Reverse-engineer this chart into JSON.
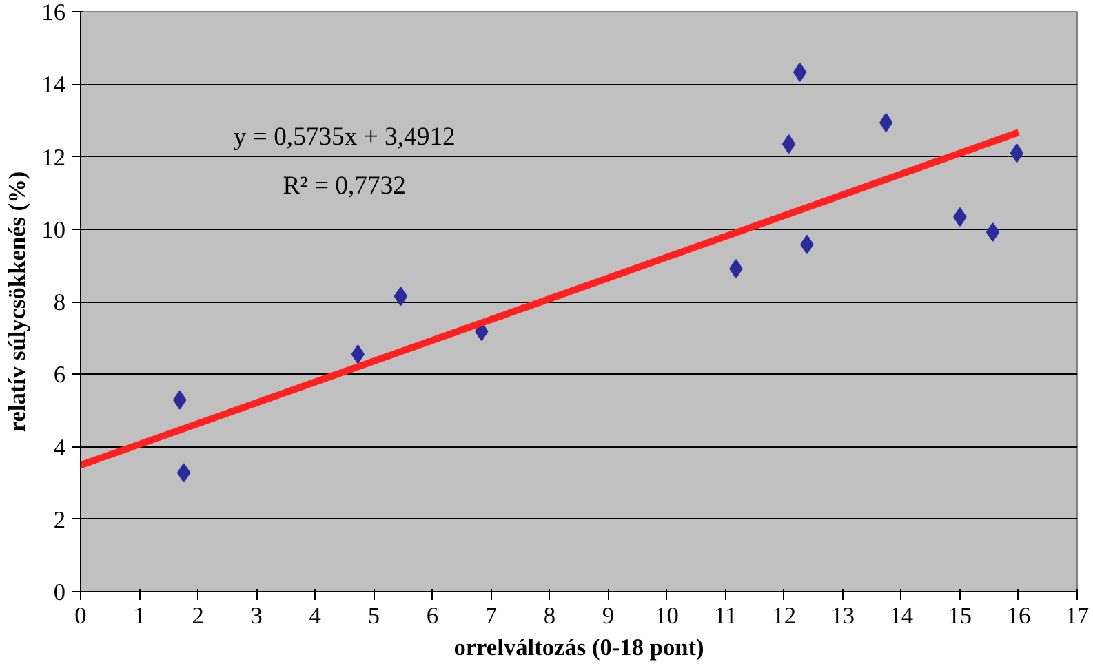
{
  "chart_data": {
    "type": "scatter",
    "xlabel": "orrelváltozás (0-18 pont)",
    "ylabel": "relatív súlycsökkenés (%)",
    "xlim": [
      0,
      17
    ],
    "xticks": [
      0,
      1,
      2,
      3,
      4,
      5,
      6,
      7,
      8,
      9,
      10,
      11,
      12,
      13,
      14,
      15,
      16,
      17
    ],
    "ylim": [
      0,
      16
    ],
    "yticks": [
      0,
      2,
      4,
      6,
      8,
      10,
      12,
      14,
      16
    ],
    "grid": "y",
    "annotations": [
      "y = 0,5735x + 3,4912",
      "R² = 0,7732"
    ],
    "series": [
      {
        "color": "#2b2b9b",
        "marker": "diamond",
        "x": [
          1.69,
          1.76,
          4.73,
          5.46,
          6.84,
          11.18,
          12.08,
          12.27,
          12.39,
          13.74,
          15.0,
          15.56,
          15.97
        ],
        "values": [
          5.29,
          3.28,
          6.55,
          8.15,
          7.18,
          8.91,
          12.35,
          14.33,
          9.58,
          12.94,
          10.34,
          9.92,
          12.1
        ]
      },
      {
        "type": "line",
        "marker": "none",
        "color": "#ff2020",
        "x": [
          0,
          16
        ],
        "values": [
          3.49,
          12.67
        ]
      }
    ]
  }
}
